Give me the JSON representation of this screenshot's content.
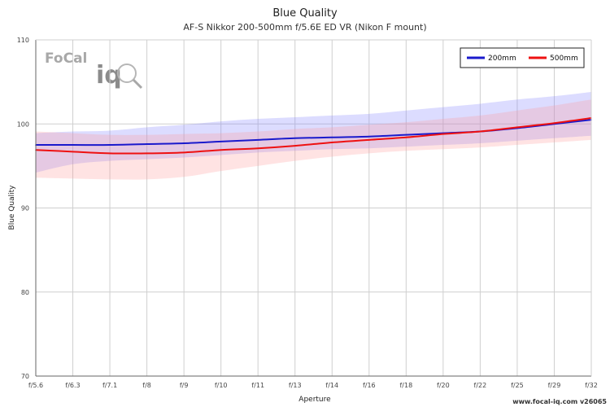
{
  "chart_data": {
    "type": "line",
    "title": "Blue Quality",
    "subtitle": "AF-S Nikkor 200-500mm f/5.6E ED VR (Nikon F mount)",
    "xlabel": "Aperture",
    "ylabel": "Blue Quality",
    "ylim": [
      70,
      110
    ],
    "yticks": [
      "70",
      "80",
      "90",
      "100",
      "110"
    ],
    "categories": [
      "f/5.6",
      "f/6.3",
      "f/7.1",
      "f/8",
      "f/9",
      "f/10",
      "f/11",
      "f/13",
      "f/14",
      "f/16",
      "f/18",
      "f/20",
      "f/22",
      "f/25",
      "f/29",
      "f/32"
    ],
    "grid": true,
    "legend_position": "top-right",
    "series": [
      {
        "name": "200mm",
        "color": "#1a1acc",
        "band_color": "#8080ff",
        "values": [
          97.5,
          97.5,
          97.5,
          97.6,
          97.7,
          97.9,
          98.1,
          98.3,
          98.4,
          98.5,
          98.7,
          98.9,
          99.1,
          99.5,
          100.0,
          100.5
        ],
        "upper": [
          98.9,
          99.1,
          99.2,
          99.6,
          99.9,
          100.3,
          100.6,
          100.8,
          101.0,
          101.2,
          101.6,
          102.0,
          102.4,
          102.9,
          103.3,
          103.8
        ],
        "lower": [
          94.2,
          95.2,
          95.6,
          95.8,
          96.0,
          96.3,
          96.6,
          96.8,
          97.0,
          97.1,
          97.3,
          97.5,
          97.7,
          98.0,
          98.3,
          98.6
        ]
      },
      {
        "name": "500mm",
        "color": "#ee1111",
        "band_color": "#ff9999",
        "values": [
          96.9,
          96.7,
          96.5,
          96.5,
          96.6,
          96.9,
          97.1,
          97.4,
          97.8,
          98.1,
          98.4,
          98.8,
          99.1,
          99.6,
          100.1,
          100.7
        ],
        "upper": [
          99.1,
          98.9,
          98.7,
          98.7,
          98.8,
          98.9,
          99.1,
          99.4,
          99.6,
          99.9,
          100.2,
          100.6,
          101.0,
          101.6,
          102.2,
          102.9
        ],
        "lower": [
          93.6,
          93.5,
          93.4,
          93.4,
          93.7,
          94.4,
          95.0,
          95.6,
          96.1,
          96.5,
          96.8,
          97.0,
          97.2,
          97.5,
          97.8,
          98.1
        ]
      }
    ]
  },
  "logo": {
    "focal": "FoCal",
    "iq": "iq"
  },
  "credit": "www.focal-iq.com  v26065"
}
